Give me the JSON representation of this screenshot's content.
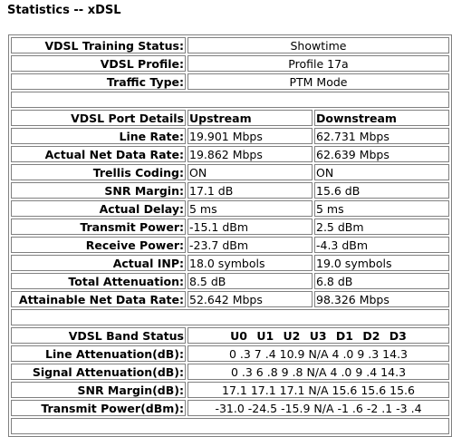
{
  "page": {
    "title": "Statistics -- xDSL"
  },
  "status_rows": [
    {
      "label": "VDSL Training Status:",
      "value": "Showtime"
    },
    {
      "label": "VDSL Profile:",
      "value": "Profile 17a"
    },
    {
      "label": "Traffic Type:",
      "value": "PTM Mode"
    }
  ],
  "port": {
    "header": {
      "label": "VDSL Port Details",
      "up": "Upstream",
      "down": "Downstream"
    },
    "rows": [
      {
        "label": "Line Rate:",
        "up": "19.901 Mbps",
        "down": "62.731 Mbps"
      },
      {
        "label": "Actual Net Data Rate:",
        "up": "19.862 Mbps",
        "down": "62.639 Mbps"
      },
      {
        "label": "Trellis Coding:",
        "up": "ON",
        "down": "ON"
      },
      {
        "label": "SNR Margin:",
        "up": "17.1 dB",
        "down": "15.6 dB"
      },
      {
        "label": "Actual Delay:",
        "up": "5 ms",
        "down": "5 ms"
      },
      {
        "label": "Transmit Power:",
        "up": "-15.1 dBm",
        "down": "2.5 dBm"
      },
      {
        "label": "Receive Power:",
        "up": "-23.7 dBm",
        "down": "-4.3 dBm"
      },
      {
        "label": "Actual INP:",
        "up": "18.0 symbols",
        "down": "19.0 symbols"
      },
      {
        "label": "Total Attenuation:",
        "up": "8.5 dB",
        "down": "6.8 dB"
      },
      {
        "label": "Attainable Net Data Rate:",
        "up": "52.642 Mbps",
        "down": "98.326 Mbps"
      }
    ]
  },
  "band": {
    "header": {
      "label": "VDSL Band Status",
      "value": "U0 U1 U2 U3 D1 D2 D3"
    },
    "rows": [
      {
        "label": "Line Attenuation(dB):",
        "value": "0 .3 7 .4 10.9 N/A 4 .0 9 .3 14.3"
      },
      {
        "label": "Signal Attenuation(dB):",
        "value": "0 .3 6 .8 9 .8 N/A 4 .0 9 .4 14.3"
      },
      {
        "label": "SNR Margin(dB):",
        "value": "17.1 17.1 17.1 N/A 15.6 15.6 15.6"
      },
      {
        "label": "Transmit Power(dBm):",
        "value": "-31.0 -24.5 -15.9 N/A -1 .6 -2 .1 -3 .4"
      }
    ]
  }
}
